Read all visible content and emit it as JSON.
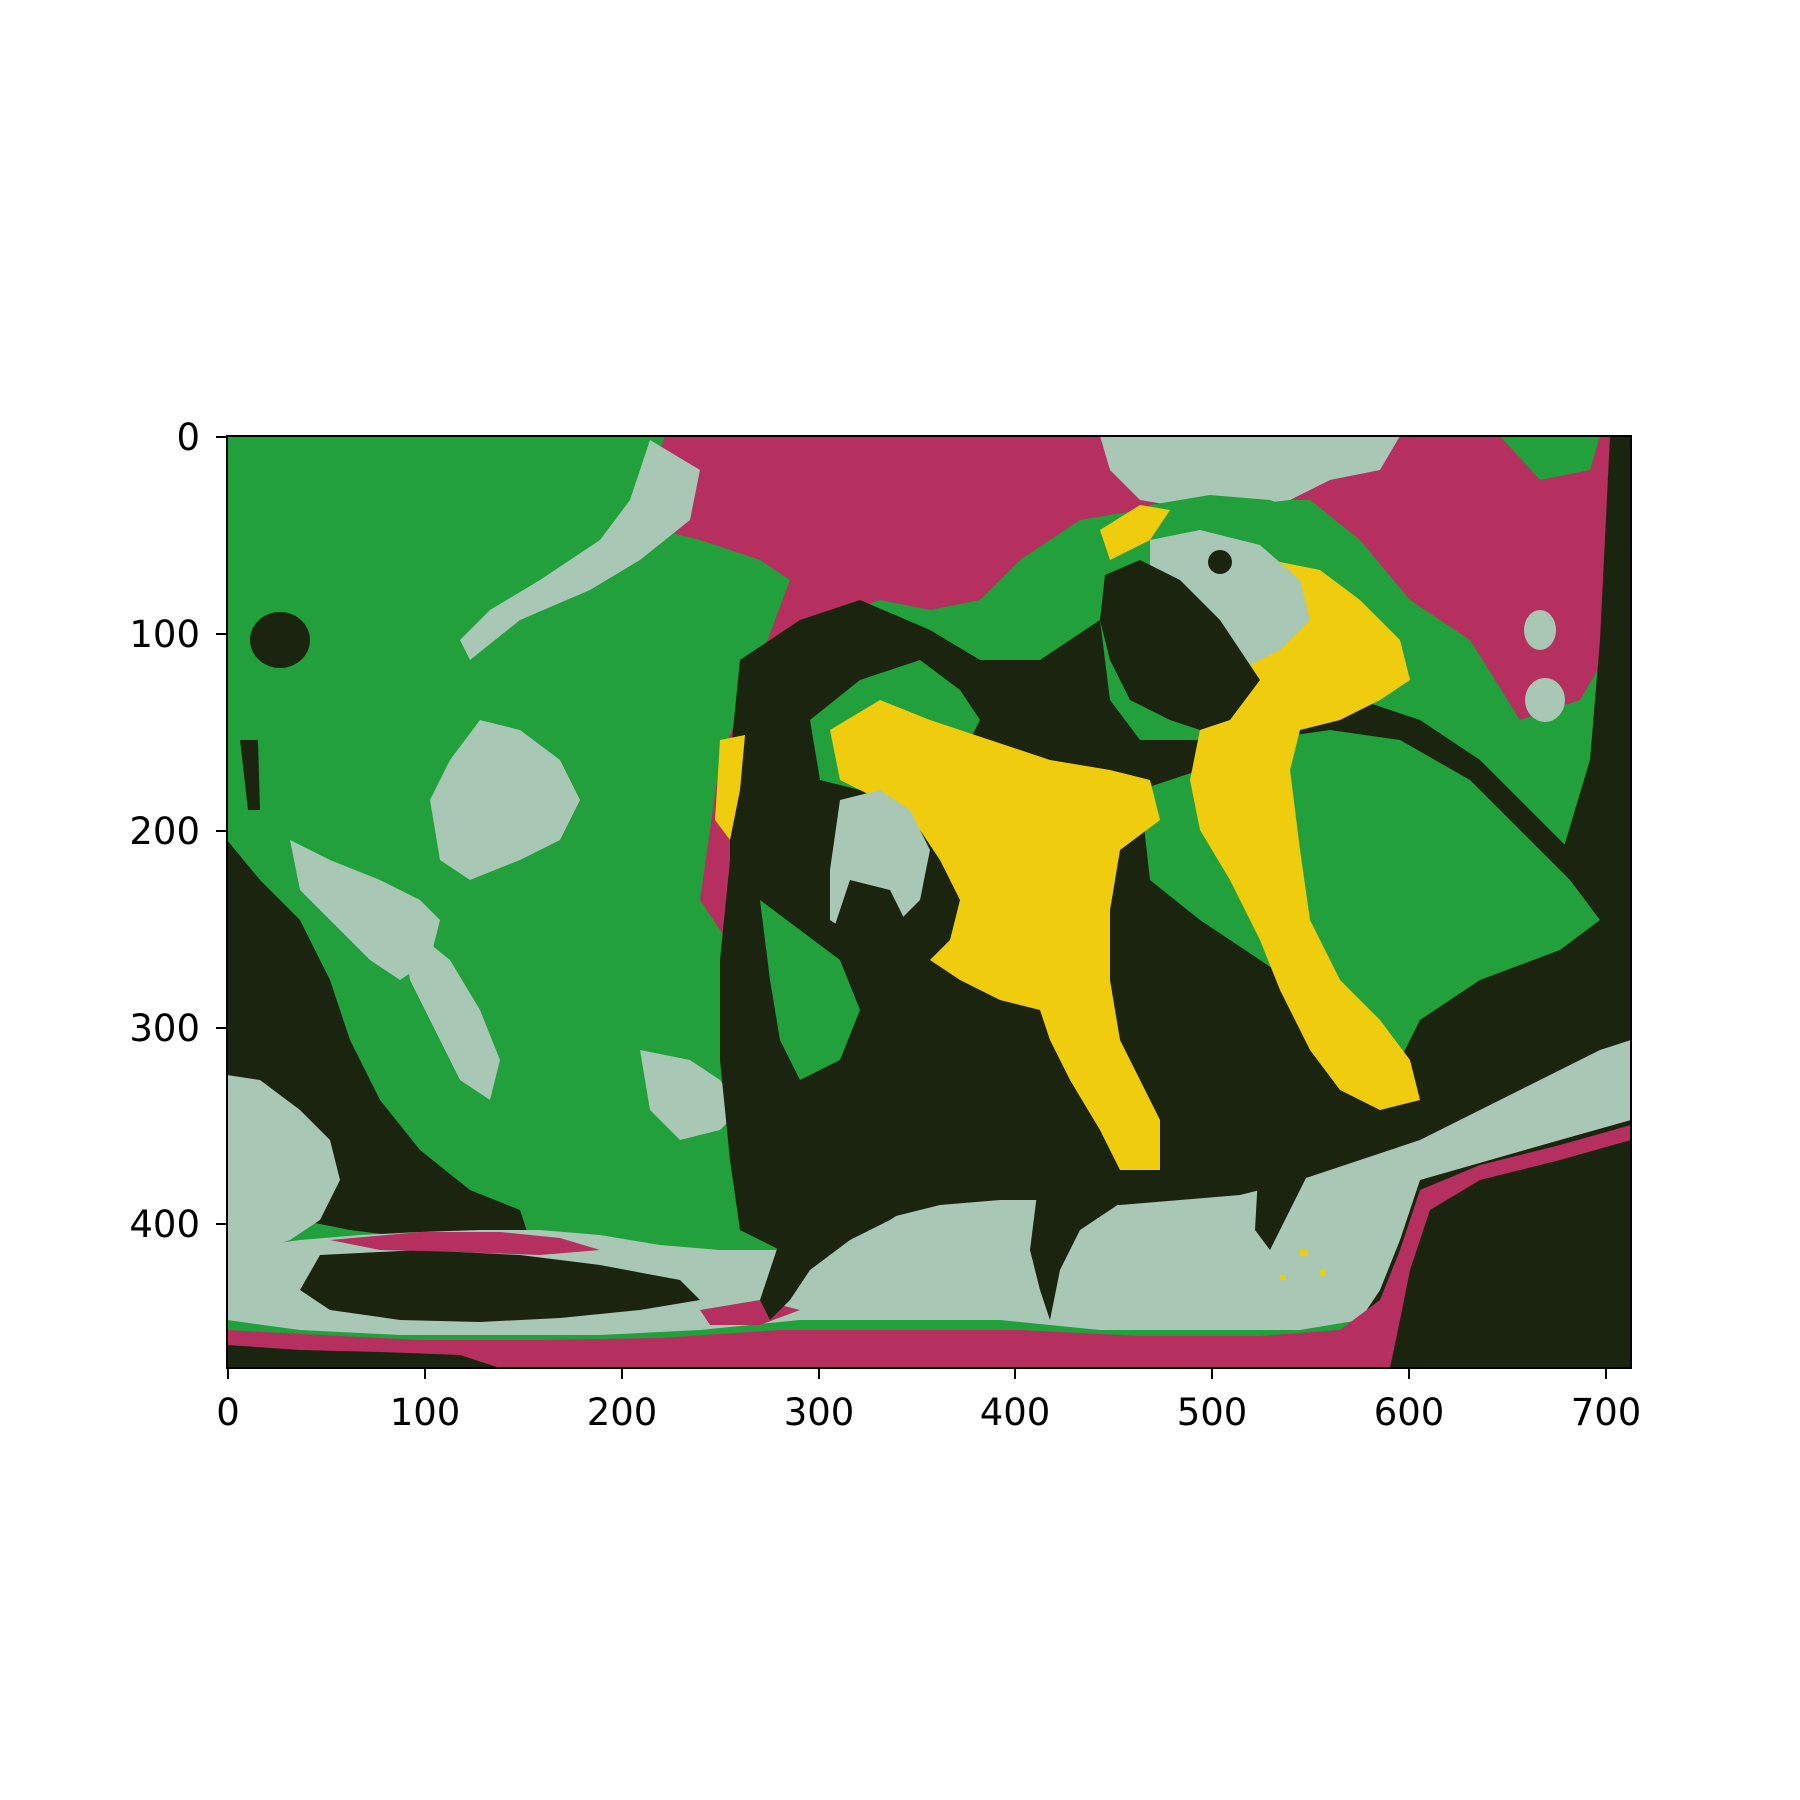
{
  "figure": {
    "description_type": "image axes (imshow) showing a color-quantized photograph of two macaws",
    "palette": {
      "green": "#21A03C",
      "magenta": "#B52F5F",
      "sage": "#A8C7B5",
      "dark": "#1B240E",
      "yellow": "#EFCD0E"
    },
    "x_axis": {
      "ticks": [
        "0",
        "100",
        "200",
        "300",
        "400",
        "500",
        "600",
        "700"
      ],
      "range": [
        0,
        713
      ]
    },
    "y_axis": {
      "ticks": [
        "0",
        "100",
        "200",
        "300",
        "400"
      ],
      "range": [
        0,
        474
      ],
      "inverted": true
    }
  }
}
